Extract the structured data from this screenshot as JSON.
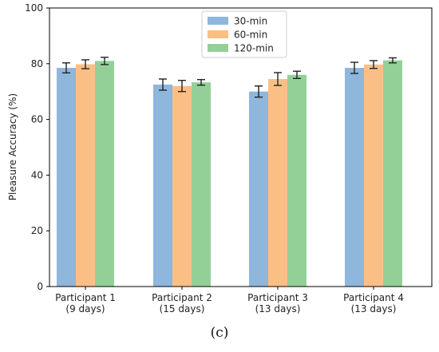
{
  "panel_label": "(c)",
  "colors": {
    "series": [
      "#8fb6db",
      "#fbbf86",
      "#93d098"
    ],
    "error_bar": "#222222",
    "axis": "#000000"
  },
  "chart_data": {
    "type": "bar",
    "title": "",
    "xlabel": "",
    "ylabel": "Pleasure Accuracy (%)",
    "ylim": [
      0,
      100
    ],
    "yticks": [
      0,
      20,
      40,
      60,
      80,
      100
    ],
    "grid": false,
    "legend_position": "top-center",
    "categories": [
      [
        "Participant 1",
        "(9 days)"
      ],
      [
        "Participant 2",
        "(15 days)"
      ],
      [
        "Participant 3",
        "(13 days)"
      ],
      [
        "Participant 4",
        "(13 days)"
      ]
    ],
    "series": [
      {
        "name": "30-min",
        "values": [
          78.5,
          72.5,
          70.0,
          78.5
        ],
        "errors": [
          1.8,
          2.0,
          2.0,
          2.0
        ]
      },
      {
        "name": "60-min",
        "values": [
          79.8,
          72.0,
          74.5,
          79.7
        ],
        "errors": [
          1.6,
          2.0,
          2.3,
          1.4
        ]
      },
      {
        "name": "120-min",
        "values": [
          81.0,
          73.3,
          76.0,
          81.2
        ],
        "errors": [
          1.3,
          1.0,
          1.3,
          0.9
        ]
      }
    ]
  }
}
